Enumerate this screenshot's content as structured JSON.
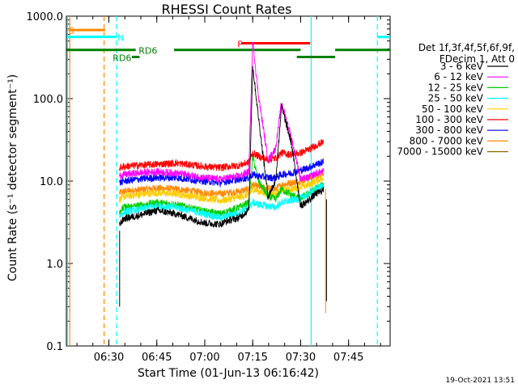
{
  "chart_data": {
    "type": "line",
    "title": "RHESSI Count Rates",
    "xlabel": "Start Time (01-Jun-13 06:16:42)",
    "ylabel": "Count Rate (s⁻¹ detector segment⁻¹)",
    "yscale": "log",
    "xlim": [
      6.2783,
      7.9667
    ],
    "ylim": [
      0.1,
      1000
    ],
    "x_ticks": [
      {
        "x": 6.5,
        "label": "06:30"
      },
      {
        "x": 6.75,
        "label": "06:45"
      },
      {
        "x": 7.0,
        "label": "07:00"
      },
      {
        "x": 7.25,
        "label": "07:15"
      },
      {
        "x": 7.5,
        "label": "07:30"
      },
      {
        "x": 7.75,
        "label": "07:45"
      }
    ],
    "y_ticks": [
      {
        "y": 0.1,
        "label": "0.1"
      },
      {
        "y": 1,
        "label": "1.0"
      },
      {
        "y": 10,
        "label": "10.0"
      },
      {
        "y": 100,
        "label": "100.0"
      },
      {
        "y": 1000,
        "label": "1000.0"
      }
    ],
    "legend": {
      "header": [
        "Det 1f,3f,4f,5f,6f,9f,",
        "FDecim 1, Att 0"
      ],
      "placement": "right"
    },
    "series": [
      {
        "name": "3 - 6 keV",
        "color": "#000000",
        "x": [
          6.555,
          6.58,
          6.65,
          6.75,
          6.85,
          7.0,
          7.08,
          7.12,
          7.18,
          7.23,
          7.25,
          7.28,
          7.33,
          7.37,
          7.4,
          7.45,
          7.5,
          7.54,
          7.58,
          7.62
        ],
        "y": [
          3.0,
          3.5,
          3.8,
          4.4,
          4.0,
          3.1,
          3.0,
          3.3,
          3.6,
          4.5,
          250,
          60,
          6.5,
          10,
          80,
          30,
          5.0,
          5.8,
          7.0,
          7.8
        ]
      },
      {
        "name": "6 - 12 keV",
        "color": "#ff00ff",
        "x": [
          6.555,
          6.58,
          6.65,
          6.75,
          6.85,
          7.0,
          7.08,
          7.12,
          7.18,
          7.23,
          7.25,
          7.28,
          7.33,
          7.37,
          7.4,
          7.45,
          7.5,
          7.54,
          7.58,
          7.62
        ],
        "y": [
          11.5,
          12,
          12.5,
          13,
          12.5,
          11,
          10.5,
          11,
          11.5,
          13,
          500,
          110,
          18,
          25,
          90,
          35,
          10.5,
          11,
          12.5,
          13
        ]
      },
      {
        "name": "12 - 25 keV",
        "color": "#00cc00",
        "x": [
          6.555,
          6.58,
          6.65,
          6.75,
          6.85,
          7.0,
          7.08,
          7.12,
          7.18,
          7.23,
          7.25,
          7.28,
          7.33,
          7.37,
          7.4,
          7.45,
          7.5,
          7.54,
          7.58,
          7.62
        ],
        "y": [
          4.3,
          4.8,
          5.0,
          5.5,
          5.2,
          4.3,
          4.0,
          4.3,
          4.8,
          5.5,
          20,
          10,
          6.5,
          6.0,
          8,
          6.8,
          6.2,
          7.0,
          8.2,
          9.0
        ]
      },
      {
        "name": "25 - 50 keV",
        "color": "#00ffff",
        "x": [
          6.555,
          6.58,
          6.65,
          6.75,
          6.85,
          7.0,
          7.08,
          7.12,
          7.18,
          7.23,
          7.25,
          7.28,
          7.33,
          7.37,
          7.4,
          7.45,
          7.5,
          7.54,
          7.58,
          7.62
        ],
        "y": [
          3.8,
          4.2,
          4.5,
          5.0,
          4.8,
          4.0,
          3.6,
          3.8,
          4.2,
          4.8,
          5.5,
          5.2,
          5.0,
          4.8,
          5.5,
          5.8,
          6.2,
          7.0,
          8.0,
          9.0
        ]
      },
      {
        "name": "50 - 100 keV",
        "color": "#ffcc00",
        "x": [
          6.555,
          6.58,
          6.65,
          6.75,
          6.85,
          7.0,
          7.08,
          7.12,
          7.18,
          7.23,
          7.25,
          7.28,
          7.33,
          7.37,
          7.4,
          7.45,
          7.5,
          7.54,
          7.58,
          7.62
        ],
        "y": [
          6.0,
          6.5,
          6.8,
          7.2,
          7.0,
          6.2,
          5.8,
          6.0,
          6.4,
          6.8,
          8.0,
          7.5,
          7.0,
          7.0,
          7.8,
          8.0,
          8.5,
          9.0,
          10,
          11
        ]
      },
      {
        "name": "100 - 300 keV",
        "color": "#ff0000",
        "x": [
          6.555,
          6.58,
          6.65,
          6.75,
          6.85,
          7.0,
          7.08,
          7.12,
          7.18,
          7.23,
          7.25,
          7.28,
          7.33,
          7.37,
          7.4,
          7.45,
          7.5,
          7.54,
          7.58,
          7.62
        ],
        "y": [
          14.5,
          15,
          15.5,
          16,
          16.5,
          15,
          14.5,
          15,
          15.5,
          17,
          22,
          20,
          18,
          19,
          22,
          21,
          22,
          24,
          27,
          30
        ]
      },
      {
        "name": "300 - 800 keV",
        "color": "#0000ff",
        "x": [
          6.555,
          6.58,
          6.65,
          6.75,
          6.85,
          7.0,
          7.08,
          7.12,
          7.18,
          7.23,
          7.25,
          7.28,
          7.33,
          7.37,
          7.4,
          7.45,
          7.5,
          7.54,
          7.58,
          7.62
        ],
        "y": [
          9.5,
          10,
          10.5,
          11,
          11,
          10,
          9.5,
          10,
          10.5,
          11,
          12,
          11.5,
          11,
          11,
          12,
          12.5,
          13.5,
          14.5,
          16,
          17
        ]
      },
      {
        "name": "800 - 7000 keV",
        "color": "#ff8800",
        "x": [
          6.555,
          6.58,
          6.65,
          6.75,
          6.85,
          7.0,
          7.08,
          7.12,
          7.18,
          7.23,
          7.25,
          7.28,
          7.33,
          7.37,
          7.4,
          7.45,
          7.5,
          7.54,
          7.58,
          7.62
        ],
        "y": [
          7.2,
          7.5,
          7.8,
          8.2,
          8.0,
          7.2,
          7.0,
          7.2,
          7.5,
          8.0,
          9.0,
          8.5,
          8.2,
          8.0,
          9.0,
          9.5,
          10,
          10.8,
          11.5,
          12.5
        ]
      },
      {
        "name": "7000 - 15000 keV",
        "color": "#996600",
        "x": [],
        "y": []
      }
    ],
    "bar_rows": [
      {
        "label": "S",
        "color": "#ff8800",
        "y": 680,
        "label_x": 6.29,
        "segments": [
          [
            6.29,
            6.48
          ]
        ]
      },
      {
        "label": "N",
        "color": "#00ffff",
        "y": 560,
        "label_x": 6.545,
        "segments": [
          [
            6.28,
            6.54
          ],
          [
            7.9,
            8.0
          ]
        ]
      },
      {
        "label": "F",
        "color": "#ff0000",
        "y": 470,
        "label_x": 7.17,
        "segments": [
          [
            7.19,
            7.55
          ]
        ]
      },
      {
        "label": "RD6",
        "color": "#008000",
        "y": 390,
        "label_x": 6.655,
        "segments": [
          [
            6.28,
            6.64
          ],
          [
            6.84,
            7.5
          ],
          [
            7.68,
            8.0
          ]
        ]
      },
      {
        "label": "RD6",
        "color": "#008000",
        "y": 320,
        "label_x": 6.52,
        "segments": [
          [
            6.62,
            6.66
          ],
          [
            7.48,
            7.68
          ]
        ]
      }
    ],
    "vlines": [
      {
        "x": 6.284,
        "color": "#00ffff",
        "style": "solid"
      },
      {
        "x": 6.296,
        "color": "#ff8800",
        "style": "solid"
      },
      {
        "x": 6.475,
        "color": "#ff8800",
        "style": "dashed"
      },
      {
        "x": 6.54,
        "color": "#00ffff",
        "style": "dashed"
      },
      {
        "x": 7.555,
        "color": "#00ffff",
        "style": "solid"
      },
      {
        "x": 7.9,
        "color": "#00ffff",
        "style": "dashed"
      }
    ],
    "grid": false
  },
  "footer": {
    "date": "19-Oct-2021 13:51"
  }
}
